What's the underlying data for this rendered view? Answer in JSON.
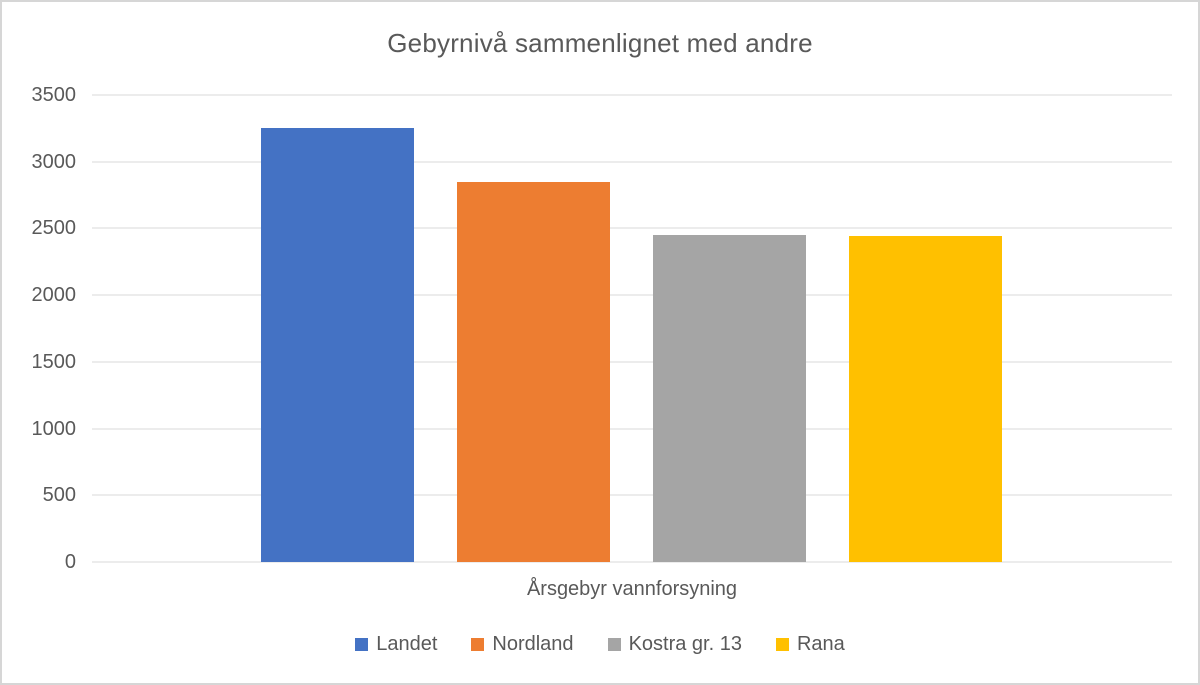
{
  "chart": {
    "title": "Gebyrnivå sammenlignet med andre",
    "xlabel": "Årsgebyr vannforsyning"
  },
  "chart_data": {
    "type": "bar",
    "title": "Gebyrnivå sammenlignet med andre",
    "xlabel": "Årsgebyr vannforsyning",
    "ylabel": "",
    "categories": [
      "Årsgebyr vannforsyning"
    ],
    "series": [
      {
        "name": "Landet",
        "values": [
          3250
        ],
        "color": "#4472C4"
      },
      {
        "name": "Nordland",
        "values": [
          2850
        ],
        "color": "#ED7D31"
      },
      {
        "name": "Kostra gr. 13",
        "values": [
          2450
        ],
        "color": "#A5A5A5"
      },
      {
        "name": "Rana",
        "values": [
          2440
        ],
        "color": "#FFC000"
      }
    ],
    "ylim": [
      0,
      3500
    ],
    "ytick_step": 500,
    "ytick_labels": [
      "0",
      "500",
      "1000",
      "1500",
      "2000",
      "2500",
      "3000",
      "3500"
    ],
    "grid": true,
    "gridline_color": "#D9D9D9",
    "text_color": "#595959",
    "legend_position": "bottom"
  }
}
